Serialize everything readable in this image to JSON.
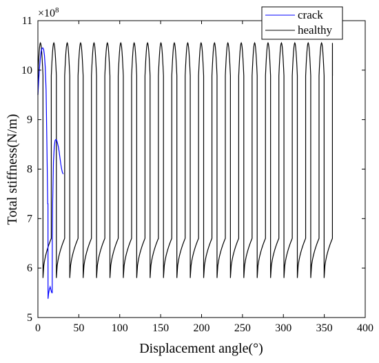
{
  "chart_data": {
    "type": "line",
    "xlabel": "Displacement angle(°)",
    "ylabel": "Total stiffness(N/m)",
    "y_multiplier": "×10",
    "y_multiplier_exp": "8",
    "xlim": [
      0,
      400
    ],
    "ylim": [
      5,
      11
    ],
    "x_ticks": [
      0,
      50,
      100,
      150,
      200,
      250,
      300,
      350,
      400
    ],
    "y_ticks": [
      5,
      6,
      7,
      8,
      9,
      10,
      11
    ],
    "grid": false,
    "legend_position": "top-right",
    "series": [
      {
        "name": "crack",
        "color": "#0000ff",
        "x": [
          0,
          1,
          2,
          3,
          4,
          5,
          6,
          7,
          8,
          9,
          10,
          11,
          12,
          12.3,
          12.4,
          13,
          14,
          15,
          16,
          17,
          17.5,
          17.6,
          18,
          19,
          20,
          21,
          22,
          23,
          24,
          25,
          26,
          27,
          28,
          29,
          30,
          31
        ],
        "y": [
          9.5,
          9.8,
          10.05,
          10.25,
          10.38,
          10.44,
          10.45,
          10.42,
          10.3,
          10.05,
          9.6,
          8.5,
          7.3,
          7.3,
          5.38,
          5.48,
          5.57,
          5.62,
          5.55,
          5.5,
          5.5,
          6.55,
          7.3,
          8.15,
          8.45,
          8.58,
          8.6,
          8.58,
          8.52,
          8.45,
          8.35,
          8.22,
          8.1,
          8.0,
          7.93,
          7.9
        ]
      },
      {
        "name": "healthy",
        "color": "#000000",
        "period": 16.36,
        "tooth_start": 0,
        "tooth_end": 360,
        "double_contact_max": 10.55,
        "double_contact_min": 9.5,
        "single_contact_start": 5.8,
        "single_contact_end": 6.6
      }
    ]
  }
}
